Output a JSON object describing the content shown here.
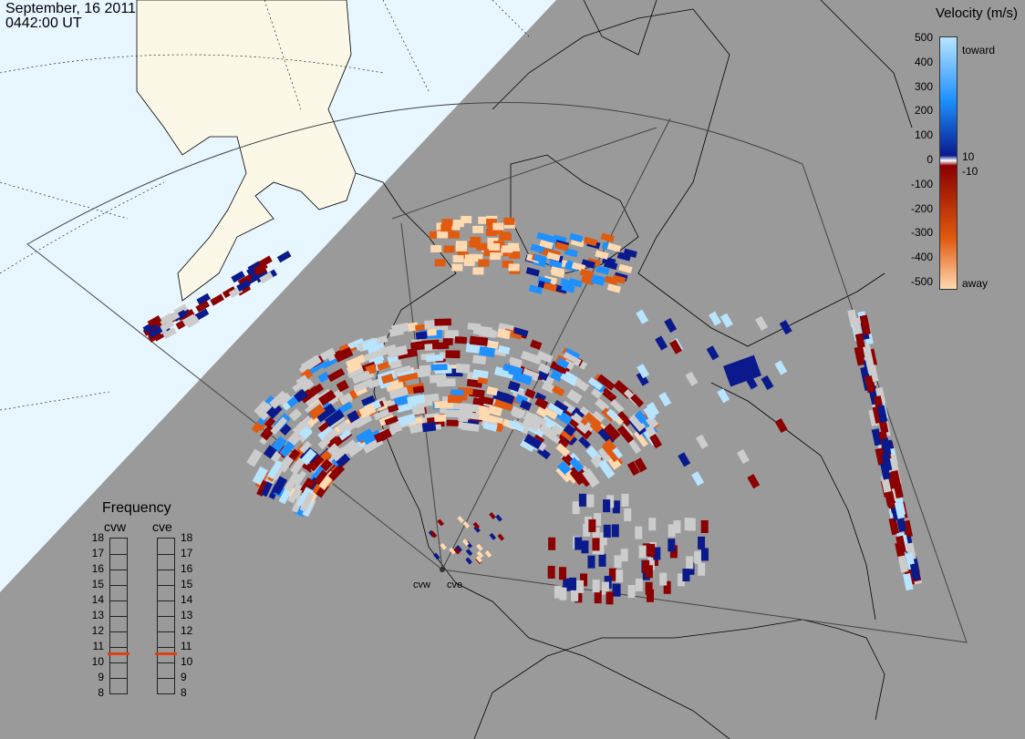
{
  "header": {
    "date": "September, 16 2011",
    "time": "0442:00 UT"
  },
  "velocity_scale": {
    "title": "Velocity (m/s)",
    "ticks": [
      "500",
      "400",
      "300",
      "200",
      "100",
      "0",
      "-100",
      "-200",
      "-300",
      "-400",
      "-500"
    ],
    "extra_ticks": [
      "10",
      "-10"
    ],
    "toward_label": "toward",
    "away_label": "away",
    "colors": {
      "toward_high": "#b8e4ff",
      "toward_mid": "#1e90ff",
      "toward_low": "#0a1a8c",
      "away_low": "#8b0000",
      "away_mid": "#e05a10",
      "away_high": "#ffd9b0",
      "ground_scatter": "#cccccc"
    }
  },
  "frequency": {
    "title": "Frequency",
    "radars": [
      {
        "name": "cvw",
        "value_mhz": 10.6
      },
      {
        "name": "cve",
        "value_mhz": 10.6
      }
    ],
    "ticks": [
      "18",
      "17",
      "16",
      "15",
      "14",
      "13",
      "12",
      "11",
      "10",
      "9",
      "8"
    ],
    "marker_color": "#e04010"
  },
  "sites": [
    {
      "name": "cvw"
    },
    {
      "name": "cve"
    }
  ],
  "map_colors": {
    "ocean_day": "#e8f6ff",
    "land_day": "#fbf8e8",
    "night": "#9a9a9a",
    "coast": "#000000"
  }
}
